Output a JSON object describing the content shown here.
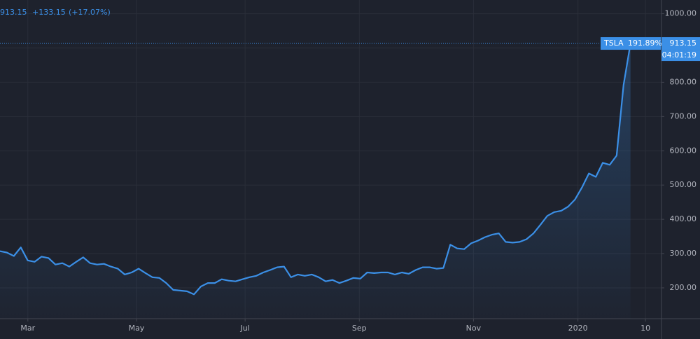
{
  "chart_data": {
    "type": "line",
    "symbol": "TSLA",
    "change": "+133.15",
    "change_pct": "(+17.07%)",
    "percent": "191.89%",
    "countdown": "04:01:19",
    "series": [
      {
        "name": "TSLA",
        "color": "#3b8fe6",
        "values": [
          307,
          303,
          293,
          318,
          280,
          276,
          291,
          287,
          268,
          272,
          262,
          276,
          289,
          272,
          268,
          270,
          262,
          256,
          239,
          245,
          256,
          243,
          231,
          229,
          214,
          194,
          192,
          190,
          181,
          204,
          214,
          214,
          225,
          221,
          219,
          225,
          231,
          235,
          245,
          252,
          260,
          262,
          231,
          239,
          235,
          239,
          231,
          219,
          223,
          214,
          221,
          229,
          227,
          245,
          243,
          245,
          245,
          239,
          245,
          241,
          252,
          260,
          260,
          256,
          258,
          326,
          315,
          313,
          330,
          338,
          348,
          355,
          359,
          334,
          332,
          334,
          342,
          359,
          384,
          410,
          421,
          425,
          437,
          458,
          493,
          534,
          524,
          565,
          559,
          586,
          792,
          913.15
        ]
      }
    ],
    "xlim": [
      0,
      95
    ],
    "xticks": [
      {
        "value": 4,
        "label": "Mar"
      },
      {
        "value": 19.6,
        "label": "May"
      },
      {
        "value": 35.2,
        "label": "Jul"
      },
      {
        "value": 51.6,
        "label": "Sep"
      },
      {
        "value": 68,
        "label": "Nov"
      },
      {
        "value": 83,
        "label": "2020"
      },
      {
        "value": 92.7,
        "label": "10"
      }
    ],
    "ylim": [
      110,
      1040
    ],
    "yticks": [
      {
        "value": 200,
        "label": "200.00"
      },
      {
        "value": 300,
        "label": "300.00"
      },
      {
        "value": 400,
        "label": "400.00"
      },
      {
        "value": 500,
        "label": "500.00"
      },
      {
        "value": 600,
        "label": "600.00"
      },
      {
        "value": 700,
        "label": "700.00"
      },
      {
        "value": 800,
        "label": "800.00"
      },
      {
        "value": 900,
        "label": "900.00"
      },
      {
        "value": 1000,
        "label": "1000.00"
      }
    ],
    "grid": true
  }
}
